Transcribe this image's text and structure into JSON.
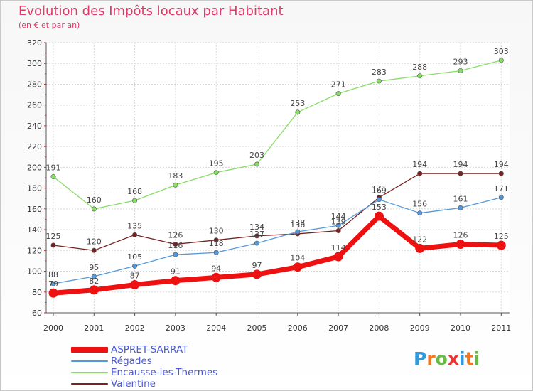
{
  "chart_data": {
    "type": "line",
    "title": "Evolution des Impôts locaux par Habitant",
    "subtitle": "(en € et par an)",
    "categories": [
      "2000",
      "2001",
      "2002",
      "2003",
      "2004",
      "2005",
      "2006",
      "2007",
      "2008",
      "2009",
      "2010",
      "2011"
    ],
    "ylim": [
      60,
      320
    ],
    "y_ticks": [
      60,
      80,
      100,
      120,
      140,
      160,
      180,
      200,
      220,
      240,
      260,
      280,
      300,
      320
    ],
    "grid": true,
    "legend_position": "bottom-left",
    "series": [
      {
        "name": "ASPRET-SARRAT",
        "color": "#ee1111",
        "values": [
          79,
          82,
          87,
          91,
          94,
          97,
          104,
          114,
          153,
          122,
          126,
          125
        ]
      },
      {
        "name": "Régades",
        "color": "#5599dd",
        "values": [
          88,
          95,
          105,
          116,
          118,
          127,
          138,
          144,
          169,
          156,
          161,
          171
        ]
      },
      {
        "name": "Encausse-les-Thermes",
        "color": "#88dd66",
        "values": [
          191,
          160,
          168,
          183,
          195,
          203,
          253,
          271,
          283,
          288,
          293,
          303
        ]
      },
      {
        "name": "Valentine",
        "color": "#772222",
        "values": [
          125,
          120,
          135,
          126,
          130,
          134,
          136,
          139,
          171,
          194,
          194,
          194
        ]
      }
    ]
  },
  "logo": {
    "text": "Proxiti"
  }
}
